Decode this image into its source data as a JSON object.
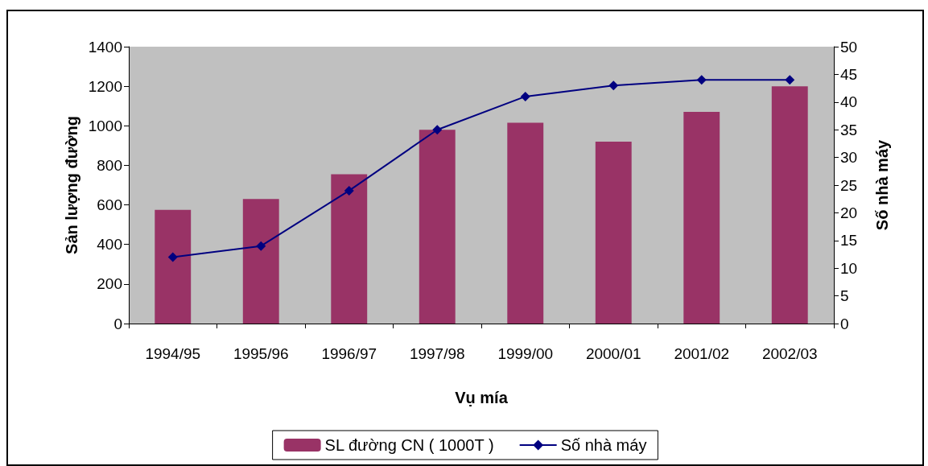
{
  "chart_data": {
    "type": "bar",
    "xlabel": "Vụ mía",
    "ylabel": "Sản lượng đường",
    "y2label": "Số nhà máy",
    "categories": [
      "1994/95",
      "1995/96",
      "1996/97",
      "1997/98",
      "1999/00",
      "2000/01",
      "2001/02",
      "2002/03"
    ],
    "series": [
      {
        "name": "SL đường CN ( 1000T )",
        "color": "#993366",
        "values": [
          575,
          630,
          755,
          980,
          1015,
          920,
          1070,
          1200
        ]
      },
      {
        "name": "Số nhà máy",
        "type": "line",
        "axis": "y2",
        "color": "#000080",
        "marker": "diamond",
        "values": [
          12,
          14,
          24,
          35,
          41,
          43,
          44,
          44
        ]
      }
    ],
    "ylim": [
      0,
      1400
    ],
    "yticks": [
      0,
      200,
      400,
      600,
      800,
      1000,
      1200,
      1400
    ],
    "y2lim": [
      0,
      50
    ],
    "y2ticks": [
      0,
      5,
      10,
      15,
      20,
      25,
      30,
      35,
      40,
      45,
      50
    ],
    "grid": false,
    "legend": "bottom"
  }
}
